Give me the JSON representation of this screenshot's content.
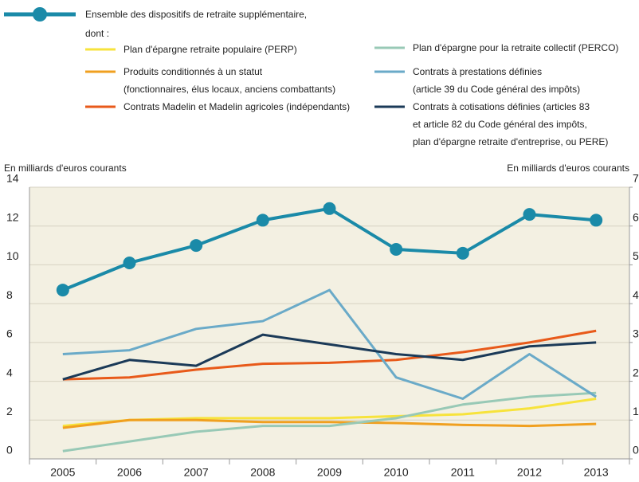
{
  "chart_data": {
    "type": "line",
    "legend_note": "dont :",
    "ylabel": "En milliards d'euros courants",
    "y2label": "En milliards d'euros courants",
    "categories": [
      "2005",
      "2006",
      "2007",
      "2008",
      "2009",
      "2010",
      "2011",
      "2012",
      "2013"
    ],
    "series": [
      {
        "name": "Ensemble des dispositifs de retraite supplémentaire,",
        "color": "#1a8aa8",
        "values": [
          8.7,
          10.1,
          11.0,
          12.3,
          12.9,
          10.8,
          10.6,
          12.6,
          12.3
        ]
      },
      {
        "name": "Plan d'épargne retraite populaire (PERP)",
        "color": "#f7e33c",
        "values": [
          1.7,
          2.0,
          2.1,
          2.1,
          2.1,
          2.2,
          2.3,
          2.6,
          3.1
        ]
      },
      {
        "name": "Produits conditionnés à un statut\n(fonctionnaires, élus locaux, anciens combattants)",
        "color": "#f0a020",
        "values": [
          1.6,
          2.0,
          2.0,
          1.9,
          1.9,
          1.85,
          1.75,
          1.7,
          1.8
        ]
      },
      {
        "name": "Contrats Madelin et Madelin agricoles (indépendants)",
        "color": "#e85a1a",
        "values": [
          4.1,
          4.2,
          4.6,
          4.9,
          4.95,
          5.1,
          5.5,
          6.0,
          6.6
        ]
      },
      {
        "name": "Plan d'épargne pour la retraite collectif (PERCO)",
        "color": "#98c9b6",
        "values": [
          0.4,
          0.9,
          1.4,
          1.7,
          1.7,
          2.1,
          2.8,
          3.2,
          3.4
        ]
      },
      {
        "name": "Contrats à prestations définies\n(article 39 du Code général des impôts)",
        "color": "#6aaac8",
        "values": [
          5.4,
          5.6,
          6.7,
          7.1,
          8.7,
          4.2,
          3.1,
          5.4,
          3.2
        ]
      },
      {
        "name": "Contrats à cotisations définies (articles 83\net article 82 du Code général des impôts,\nplan d'épargne retraite d'entreprise, ou PERE)",
        "color": "#1b3a58",
        "values": [
          4.1,
          5.1,
          4.8,
          6.4,
          5.9,
          5.4,
          5.1,
          5.8,
          6.0
        ]
      }
    ],
    "ylim": [
      0,
      14
    ],
    "yticks": [
      0,
      2,
      4,
      6,
      8,
      10,
      12,
      14
    ],
    "y2lim": [
      0,
      7
    ],
    "y2ticks": [
      0,
      1,
      2,
      3,
      4,
      5,
      6,
      7
    ],
    "grid": true
  }
}
